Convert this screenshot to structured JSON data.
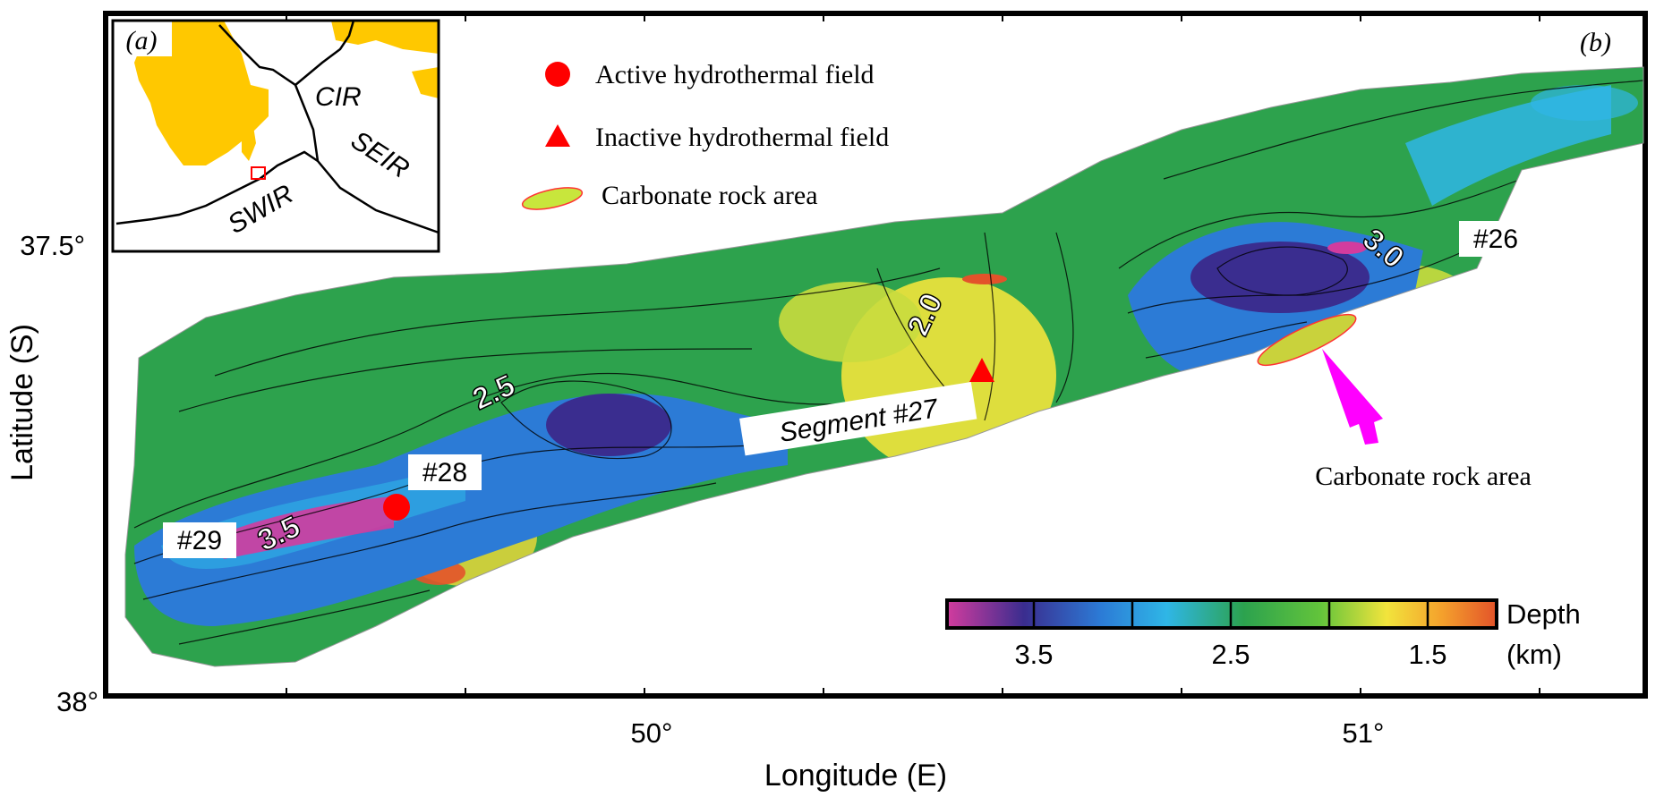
{
  "panel_labels": {
    "inset": "(a)",
    "main": "(b)"
  },
  "inset": {
    "ridges": [
      "CIR",
      "SEIR",
      "SWIR"
    ]
  },
  "legend": {
    "items": [
      {
        "symbol": "circle",
        "label": "Active hydrothermal field",
        "color": "#ff0000"
      },
      {
        "symbol": "triangle",
        "label": "Inactive hydrothermal field",
        "color": "#ff0000"
      },
      {
        "symbol": "ellipse",
        "label": "Carbonate rock area",
        "color": "#c8e63c"
      }
    ]
  },
  "segments": [
    "#26",
    "Segment #27",
    "#28",
    "#29"
  ],
  "contour_labels": [
    "3.0",
    "2.0",
    "2.5",
    "3.5"
  ],
  "annotation": {
    "carbonate_label": "Carbonate rock area",
    "arrow_color": "#ff00ff"
  },
  "axes": {
    "x_label": "Longitude (E)",
    "y_label": "Latitude (S)",
    "x_ticks": [
      "50°",
      "51°"
    ],
    "y_ticks": [
      "37.5°",
      "38°"
    ]
  },
  "colorbar": {
    "title": "Depth",
    "unit": "(km)",
    "tick_labels": [
      "3.5",
      "2.5",
      "1.5"
    ],
    "colors": [
      "#d23c9e",
      "#3a2d8f",
      "#2c7bd6",
      "#2fb6e6",
      "#2ca24e",
      "#63c43b",
      "#f2e43c",
      "#f4a12c",
      "#e3532a"
    ]
  }
}
